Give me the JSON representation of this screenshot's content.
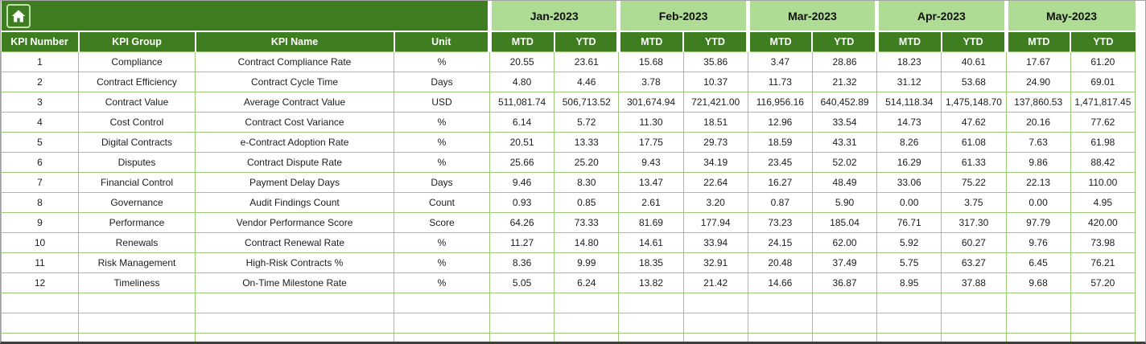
{
  "colors": {
    "header_green": "#3E7D20",
    "month_band_green": "#AEDC94",
    "gridline_green": "#9CCB77",
    "cell_background": "#FFFFFF",
    "header_text": "#FFFFFF",
    "body_text": "#1C1C1C"
  },
  "icons": {
    "home": "home-icon"
  },
  "months": [
    "Jan-2023",
    "Feb-2023",
    "Mar-2023",
    "Apr-2023",
    "May-2023"
  ],
  "labels": {
    "mtd": "MTD",
    "ytd": "YTD"
  },
  "table": {
    "columns": [
      "KPI Number",
      "KPI Group",
      "KPI Name",
      "Unit"
    ],
    "empty_rows": 3,
    "rows": [
      {
        "number": "1",
        "group": "Compliance",
        "name": "Contract Compliance Rate",
        "unit": "%",
        "values": [
          "20.55",
          "23.61",
          "15.68",
          "35.86",
          "3.47",
          "28.86",
          "18.23",
          "40.61",
          "17.67",
          "61.20"
        ]
      },
      {
        "number": "2",
        "group": "Contract Efficiency",
        "name": "Contract Cycle Time",
        "unit": "Days",
        "values": [
          "4.80",
          "4.46",
          "3.78",
          "10.37",
          "11.73",
          "21.32",
          "31.12",
          "53.68",
          "24.90",
          "69.01"
        ]
      },
      {
        "number": "3",
        "group": "Contract Value",
        "name": "Average Contract Value",
        "unit": "USD",
        "values": [
          "511,081.74",
          "506,713.52",
          "301,674.94",
          "721,421.00",
          "116,956.16",
          "640,452.89",
          "514,118.34",
          "1,475,148.70",
          "137,860.53",
          "1,471,817.45"
        ]
      },
      {
        "number": "4",
        "group": "Cost Control",
        "name": "Contract Cost Variance",
        "unit": "%",
        "values": [
          "6.14",
          "5.72",
          "11.30",
          "18.51",
          "12.96",
          "33.54",
          "14.73",
          "47.62",
          "20.16",
          "77.62"
        ]
      },
      {
        "number": "5",
        "group": "Digital Contracts",
        "name": "e-Contract Adoption Rate",
        "unit": "%",
        "values": [
          "20.51",
          "13.33",
          "17.75",
          "29.73",
          "18.59",
          "43.31",
          "8.26",
          "61.08",
          "7.63",
          "61.98"
        ]
      },
      {
        "number": "6",
        "group": "Disputes",
        "name": "Contract Dispute Rate",
        "unit": "%",
        "values": [
          "25.66",
          "25.20",
          "9.43",
          "34.19",
          "23.45",
          "52.02",
          "16.29",
          "61.33",
          "9.86",
          "88.42"
        ]
      },
      {
        "number": "7",
        "group": "Financial Control",
        "name": "Payment Delay Days",
        "unit": "Days",
        "values": [
          "9.46",
          "8.30",
          "13.47",
          "22.64",
          "16.27",
          "48.49",
          "33.06",
          "75.22",
          "22.13",
          "110.00"
        ]
      },
      {
        "number": "8",
        "group": "Governance",
        "name": "Audit Findings Count",
        "unit": "Count",
        "values": [
          "0.93",
          "0.85",
          "2.61",
          "3.20",
          "0.87",
          "5.90",
          "0.00",
          "3.75",
          "0.00",
          "4.95"
        ]
      },
      {
        "number": "9",
        "group": "Performance",
        "name": "Vendor Performance Score",
        "unit": "Score",
        "values": [
          "64.26",
          "73.33",
          "81.69",
          "177.94",
          "73.23",
          "185.04",
          "76.71",
          "317.30",
          "97.79",
          "420.00"
        ]
      },
      {
        "number": "10",
        "group": "Renewals",
        "name": "Contract Renewal Rate",
        "unit": "%",
        "values": [
          "11.27",
          "14.80",
          "14.61",
          "33.94",
          "24.15",
          "62.00",
          "5.92",
          "60.27",
          "9.76",
          "73.98"
        ]
      },
      {
        "number": "11",
        "group": "Risk Management",
        "name": "High-Risk Contracts %",
        "unit": "%",
        "values": [
          "8.36",
          "9.99",
          "18.35",
          "32.91",
          "20.48",
          "37.49",
          "5.75",
          "63.27",
          "6.45",
          "76.21"
        ]
      },
      {
        "number": "12",
        "group": "Timeliness",
        "name": "On-Time Milestone Rate",
        "unit": "%",
        "values": [
          "5.05",
          "6.24",
          "13.82",
          "21.42",
          "14.66",
          "36.87",
          "8.95",
          "37.88",
          "9.68",
          "57.20"
        ]
      }
    ]
  }
}
